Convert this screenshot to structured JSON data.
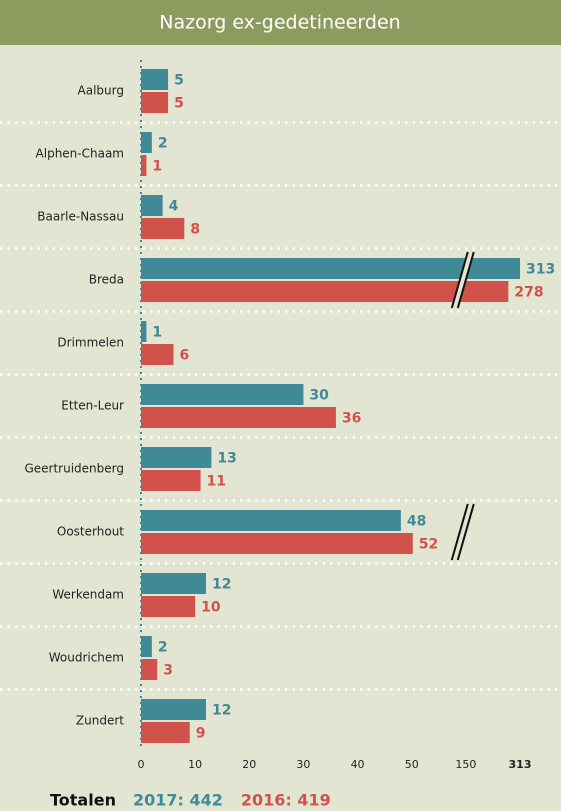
{
  "chart_data": {
    "type": "bar",
    "orientation": "horizontal",
    "title": "Nazorg ex-gedetineerden",
    "categories": [
      "Aalburg",
      "Alphen-Chaam",
      "Baarle-Nassau",
      "Breda",
      "Drimmelen",
      "Etten-Leur",
      "Geertruidenberg",
      "Oosterhout",
      "Werkendam",
      "Woudrichem",
      "Zundert"
    ],
    "series": [
      {
        "name": "2017: 442",
        "color": "#3f8a96",
        "values": [
          5,
          2,
          4,
          313,
          1,
          30,
          13,
          48,
          12,
          2,
          12
        ]
      },
      {
        "name": "2016: 419",
        "color": "#d1524b",
        "values": [
          5,
          1,
          8,
          278,
          6,
          36,
          11,
          52,
          10,
          3,
          9
        ]
      }
    ],
    "legend_title": "Totalen",
    "xlim": [
      0,
      313
    ],
    "xticks": [
      0,
      10,
      20,
      30,
      40,
      50,
      150,
      313
    ],
    "axis_break": true
  }
}
